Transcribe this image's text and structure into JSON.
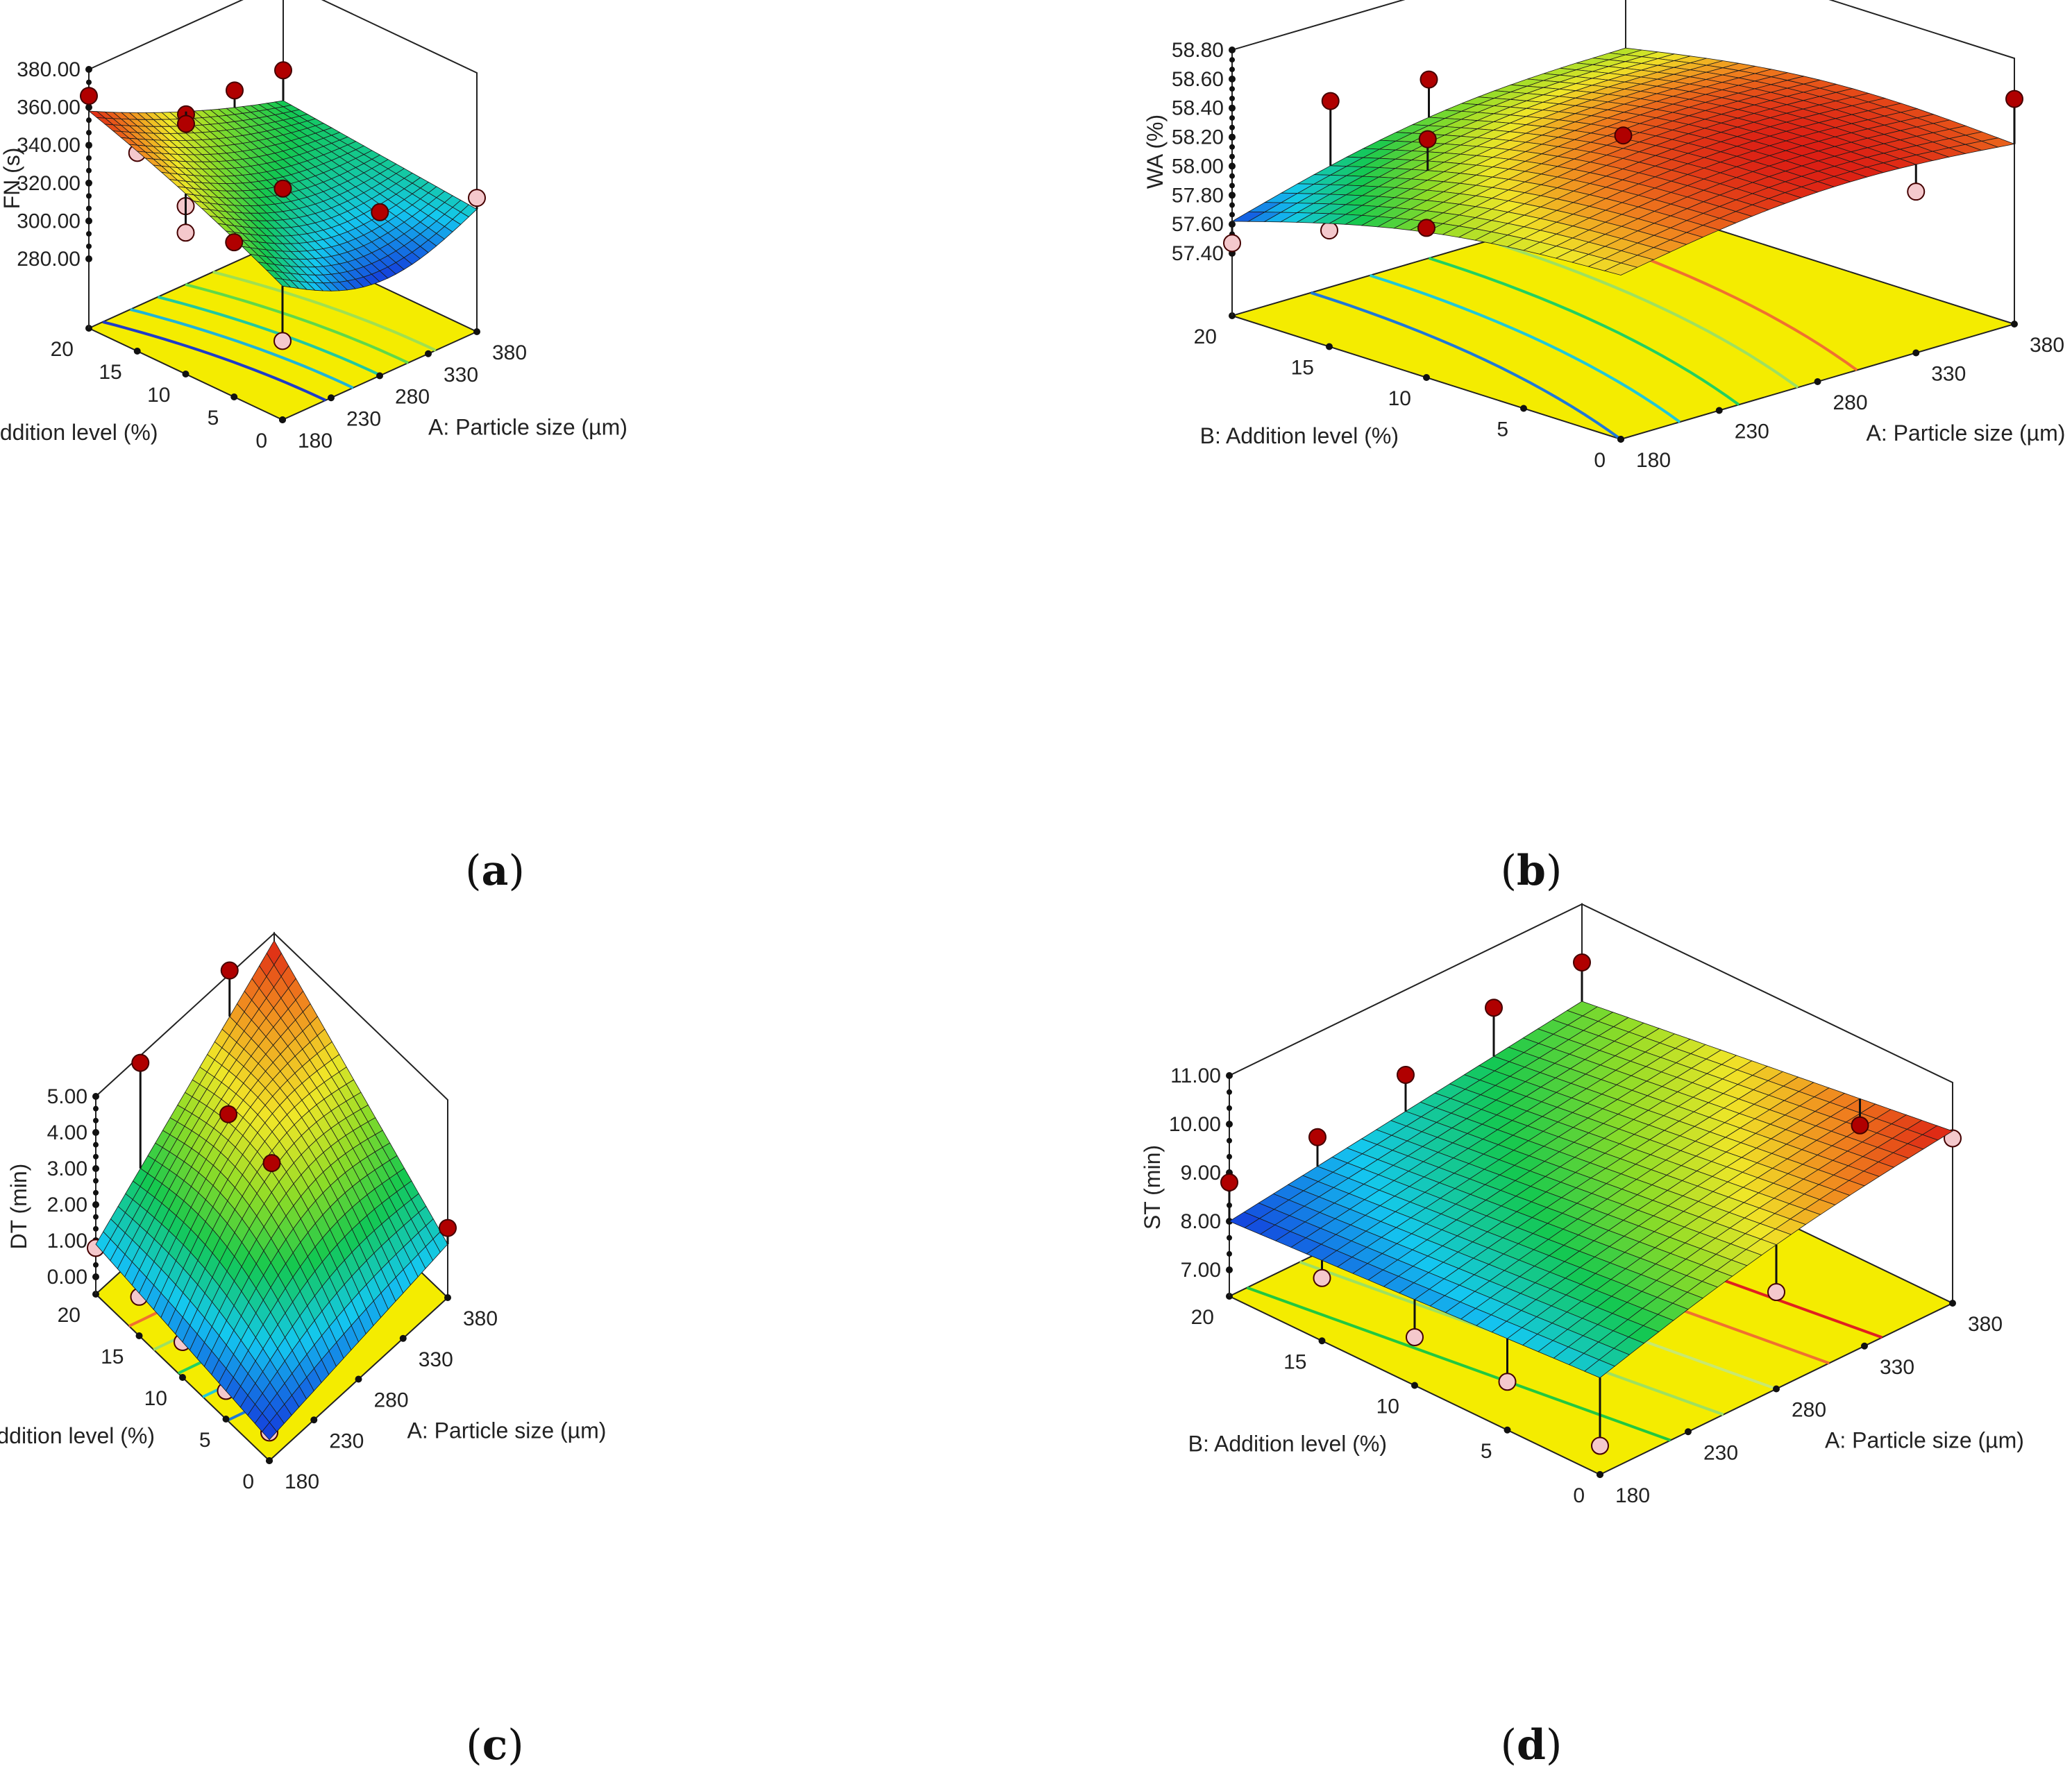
{
  "chart_data": [
    {
      "id": "a",
      "type": "surface",
      "caption_letter": "a",
      "zlabel": "FN (s)",
      "xlabel": "A: Particle size (µm)",
      "ylabel": "B: Addition level (%)",
      "x_ticks": [
        "180",
        "230",
        "280",
        "330",
        "380"
      ],
      "y_ticks": [
        "0",
        "5",
        "10",
        "15",
        "20"
      ],
      "z_ticks": [
        "280.00",
        "300.00",
        "320.00",
        "340.00",
        "360.00",
        "380.00"
      ],
      "xlim": [
        180,
        380
      ],
      "ylim": [
        0,
        20
      ],
      "zlim": [
        265,
        380
      ],
      "surface_corners": {
        "A180_B0": 314,
        "A380_B0": 308,
        "A180_B20": 358,
        "A380_B20": 317
      },
      "contour_colors": [
        "#1e3cc8",
        "#20b4d8",
        "#22c8a0",
        "#60d84a",
        "#a0e050"
      ],
      "points": [
        {
          "A": 180,
          "B": 20,
          "FN": 366,
          "above": true
        },
        {
          "A": 180,
          "B": 15,
          "FN": 348,
          "above": false
        },
        {
          "A": 180,
          "B": 10,
          "FN": 332,
          "above": false
        },
        {
          "A": 180,
          "B": 10,
          "FN": 318,
          "above": false
        },
        {
          "A": 180,
          "B": 5,
          "FN": 325,
          "above": true
        },
        {
          "A": 280,
          "B": 20,
          "FN": 333,
          "above": true
        },
        {
          "A": 280,
          "B": 20,
          "FN": 328,
          "above": true
        },
        {
          "A": 330,
          "B": 20,
          "FN": 334,
          "above": true
        },
        {
          "A": 380,
          "B": 20,
          "FN": 333,
          "above": true
        },
        {
          "A": 280,
          "B": 10,
          "FN": 318,
          "above": true
        },
        {
          "A": 330,
          "B": 5,
          "FN": 306,
          "above": true
        },
        {
          "A": 380,
          "B": 0,
          "FN": 314,
          "above": false
        },
        {
          "A": 180,
          "B": 0,
          "FN": 285,
          "above": false
        }
      ]
    },
    {
      "id": "b",
      "type": "surface",
      "caption_letter": "b",
      "zlabel": "WA (%)",
      "xlabel": "A: Particle size (µm)",
      "ylabel": "B: Addition level (%)",
      "x_ticks": [
        "180",
        "230",
        "280",
        "330",
        "380"
      ],
      "y_ticks": [
        "0",
        "5",
        "10",
        "15",
        "20"
      ],
      "z_ticks": [
        "57.40",
        "57.60",
        "57.80",
        "58.00",
        "58.20",
        "58.40",
        "58.60",
        "58.80"
      ],
      "xlim": [
        180,
        380
      ],
      "ylim": [
        0,
        20
      ],
      "zlim": [
        57.4,
        58.8
      ],
      "surface_corners": {
        "A180_B0": 58.1,
        "A380_B0": 58.21,
        "A180_B20": 57.62,
        "A380_B20": 58.02
      },
      "contour_colors": [
        "#1e78d8",
        "#20c8d8",
        "#22d060",
        "#9ee060",
        "#f07030"
      ],
      "points": [
        {
          "A": 180,
          "B": 20,
          "WA": 57.47,
          "above": false
        },
        {
          "A": 180,
          "B": 15,
          "WA": 57.77,
          "above": false
        },
        {
          "A": 180,
          "B": 10,
          "WA": 58.0,
          "above": true
        },
        {
          "A": 230,
          "B": 20,
          "WA": 58.25,
          "above": true
        },
        {
          "A": 230,
          "B": 15,
          "WA": 58.2,
          "above": true
        },
        {
          "A": 280,
          "B": 20,
          "WA": 58.2,
          "above": true
        },
        {
          "A": 280,
          "B": 10,
          "WA": 58.24,
          "above": true
        },
        {
          "A": 280,
          "B": 5,
          "WA": 58.0,
          "above": false
        },
        {
          "A": 330,
          "B": 5,
          "WA": 58.0,
          "above": false
        },
        {
          "A": 330,
          "B": 0,
          "WA": 58.08,
          "above": false
        },
        {
          "A": 380,
          "B": 0,
          "WA": 58.52,
          "above": true
        }
      ]
    },
    {
      "id": "c",
      "type": "surface",
      "caption_letter": "c",
      "zlabel": "DT  (min)",
      "xlabel": "A: Particle size (µm)",
      "ylabel": "B: Addition level (%)",
      "x_ticks": [
        "180",
        "230",
        "280",
        "330",
        "380"
      ],
      "y_ticks": [
        "0",
        "5",
        "10",
        "15",
        "20"
      ],
      "z_ticks": [
        "0.00",
        "1.00",
        "2.00",
        "3.00",
        "4.00",
        "5.00"
      ],
      "xlim": [
        180,
        380
      ],
      "ylim": [
        0,
        20
      ],
      "zlim": [
        -1.1,
        5.0
      ],
      "surface_corners": {
        "A180_B0": 0.4,
        "A380_B0": 1.0,
        "A180_B20": 0.9,
        "A380_B20": 4.8
      },
      "contour_colors": [
        "#1e78d8",
        "#20c8d8",
        "#22d060",
        "#9ee060",
        "#f07030"
      ],
      "points": [
        {
          "A": 180,
          "B": 20,
          "DT": 0.8,
          "above": false
        },
        {
          "A": 180,
          "B": 15,
          "DT": 0.6,
          "above": false
        },
        {
          "A": 180,
          "B": 10,
          "DT": 0.5,
          "above": false
        },
        {
          "A": 180,
          "B": 5,
          "DT": 0.3,
          "above": false
        },
        {
          "A": 180,
          "B": 0,
          "DT": 0.3,
          "above": false
        },
        {
          "A": 230,
          "B": 20,
          "DT": 4.8,
          "above": true
        },
        {
          "A": 280,
          "B": 15,
          "DT": 3.4,
          "above": true
        },
        {
          "A": 280,
          "B": 10,
          "DT": 3.2,
          "above": true
        },
        {
          "A": 330,
          "B": 20,
          "DT": 5.1,
          "above": true
        },
        {
          "A": 330,
          "B": 5,
          "DT": 0.9,
          "above": false
        },
        {
          "A": 380,
          "B": 0,
          "DT": 1.45,
          "above": true
        }
      ]
    },
    {
      "id": "d",
      "type": "surface",
      "caption_letter": "d",
      "zlabel": "ST (min)",
      "xlabel": "A: Particle size (µm)",
      "ylabel": "B: Addition level (%)",
      "x_ticks": [
        "180",
        "230",
        "280",
        "330",
        "380"
      ],
      "y_ticks": [
        "0",
        "5",
        "10",
        "15",
        "20"
      ],
      "z_ticks": [
        "7.00",
        "8.00",
        "9.00",
        "10.00",
        "11.00"
      ],
      "xlim": [
        180,
        380
      ],
      "ylim": [
        0,
        20
      ],
      "zlim": [
        6.4,
        11.0
      ],
      "surface_corners": {
        "A180_B0": 8.45,
        "A380_B0": 10.0,
        "A180_B20": 8.0,
        "A380_B20": 9.0
      },
      "contour_colors": [
        "#22c840",
        "#9ee060",
        "#c8e870",
        "#f07030",
        "#e02020"
      ],
      "points": [
        {
          "A": 180,
          "B": 20,
          "ST": 8.8,
          "above": true
        },
        {
          "A": 180,
          "B": 15,
          "ST": 7.75,
          "above": false
        },
        {
          "A": 180,
          "B": 10,
          "ST": 7.45,
          "above": false
        },
        {
          "A": 180,
          "B": 5,
          "ST": 7.45,
          "above": false
        },
        {
          "A": 180,
          "B": 0,
          "ST": 7.05,
          "above": false
        },
        {
          "A": 230,
          "B": 20,
          "ST": 8.85,
          "above": true
        },
        {
          "A": 280,
          "B": 20,
          "ST": 9.25,
          "above": true
        },
        {
          "A": 330,
          "B": 20,
          "ST": 9.75,
          "above": true
        },
        {
          "A": 380,
          "B": 20,
          "ST": 9.8,
          "above": true
        },
        {
          "A": 380,
          "B": 5,
          "ST": 9.2,
          "above": true
        },
        {
          "A": 380,
          "B": 0,
          "ST": 9.85,
          "above": false
        },
        {
          "A": 280,
          "B": 0,
          "ST": 8.45,
          "above": false
        }
      ]
    }
  ]
}
